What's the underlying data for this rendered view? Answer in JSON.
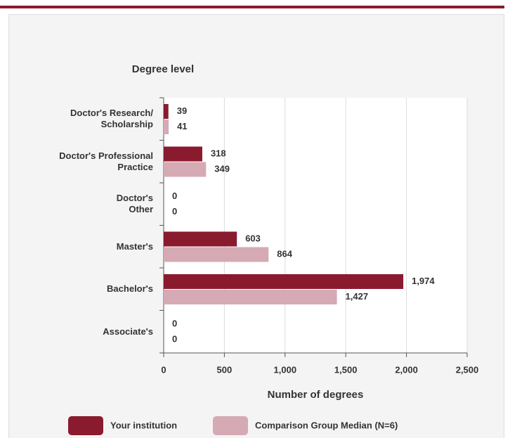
{
  "chart_data": {
    "type": "hbar",
    "y_axis_title": "Degree level",
    "x_axis_title": "Number of degrees",
    "categories": [
      "Doctor's Research/\nScholarship",
      "Doctor's Professional\nPractice",
      "Doctor's\nOther",
      "Master's",
      "Bachelor's",
      "Associate's"
    ],
    "series": [
      {
        "name": "Your institution",
        "color": "#8a1a2e",
        "values": [
          39,
          318,
          0,
          603,
          1974,
          0
        ],
        "value_labels": [
          "39",
          "318",
          "0",
          "603",
          "1,974",
          "0"
        ]
      },
      {
        "name": "Comparison Group Median (N=6)",
        "color": "#d5aab4",
        "values": [
          41,
          349,
          0,
          864,
          1427,
          0
        ],
        "value_labels": [
          "41",
          "349",
          "0",
          "864",
          "1,427",
          "0"
        ]
      }
    ],
    "xlim": [
      0,
      2500
    ],
    "xticks": [
      0,
      500,
      {
        "value": 1000,
        "label": "1,000"
      },
      {
        "value": 1500,
        "label": "1,500"
      },
      {
        "value": 2000,
        "label": "2,000"
      },
      {
        "value": 2500,
        "label": "2,500"
      }
    ],
    "grid": true
  }
}
